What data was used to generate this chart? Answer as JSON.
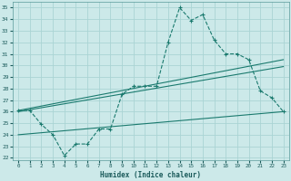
{
  "xlabel": "Humidex (Indice chaleur)",
  "ylabel": "",
  "bg_color": "#cce9e9",
  "grid_color": "#aad4d4",
  "line_color": "#1a7a6e",
  "xlim": [
    -0.5,
    23.5
  ],
  "ylim": [
    21.8,
    35.5
  ],
  "yticks": [
    22,
    23,
    24,
    25,
    26,
    27,
    28,
    29,
    30,
    31,
    32,
    33,
    34,
    35
  ],
  "xticks": [
    0,
    1,
    2,
    3,
    4,
    5,
    6,
    7,
    8,
    9,
    10,
    11,
    12,
    13,
    14,
    15,
    16,
    17,
    18,
    19,
    20,
    21,
    22,
    23
  ],
  "series": [
    {
      "x": [
        0,
        1,
        2,
        3,
        4,
        5,
        6,
        7,
        8,
        9,
        10,
        11,
        12,
        13,
        14,
        15,
        16,
        17,
        18,
        19,
        20,
        21,
        22,
        23
      ],
      "y": [
        26.1,
        26.1,
        24.9,
        24.0,
        22.2,
        23.2,
        23.2,
        24.5,
        24.5,
        27.5,
        28.2,
        28.2,
        28.2,
        32.0,
        35.0,
        33.9,
        34.4,
        32.2,
        31.0,
        31.0,
        30.5,
        27.8,
        27.2,
        26.0
      ]
    },
    {
      "x": [
        0,
        23
      ],
      "y": [
        26.1,
        30.5
      ]
    },
    {
      "x": [
        0,
        23
      ],
      "y": [
        26.0,
        29.9
      ]
    },
    {
      "x": [
        0,
        23
      ],
      "y": [
        24.0,
        26.0
      ]
    }
  ]
}
